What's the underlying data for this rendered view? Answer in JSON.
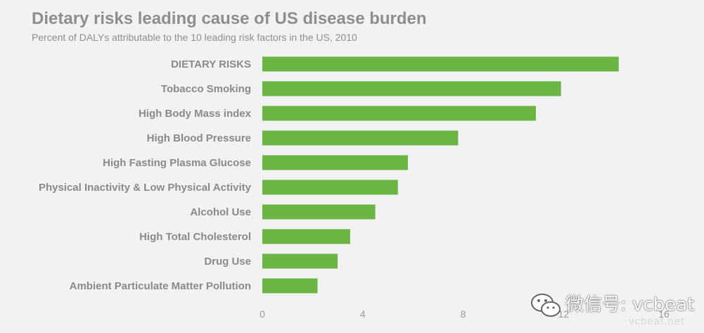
{
  "title": "Dietary risks leading cause of US disease burden",
  "subtitle": "Percent of DALYs attributable to the 10 leading risk factors in the US, 2010",
  "colors": {
    "bar": "#6bb545",
    "text": "#8e8e8e",
    "background": "#f2f2f2"
  },
  "chart_data": {
    "type": "bar",
    "orientation": "horizontal",
    "title": "Dietary risks leading cause of US disease burden",
    "subtitle": "Percent of DALYs attributable to the 10 leading risk factors in the US, 2010",
    "categories": [
      "DIETARY RISKS",
      "Tobacco Smoking",
      "High Body Mass index",
      "High Blood Pressure",
      "High Fasting Plasma Glucose",
      "Physical Inactivity & Low Physical Activity",
      "Alcohol Use",
      "High Total Cholesterol",
      "Drug Use",
      "Ambient Particulate Matter Pollution"
    ],
    "values": [
      14.2,
      11.9,
      10.9,
      7.8,
      5.8,
      5.4,
      4.5,
      3.5,
      3.0,
      2.2
    ],
    "xlim": [
      0,
      16
    ],
    "xticks": [
      0,
      4,
      8,
      12,
      16
    ],
    "xlabel": "",
    "ylabel": "",
    "grid": false,
    "legend": "none"
  },
  "watermark": {
    "main": "微信号: vcbeat",
    "sub": "vcbeat.net",
    "icon": "wechat-icon"
  }
}
